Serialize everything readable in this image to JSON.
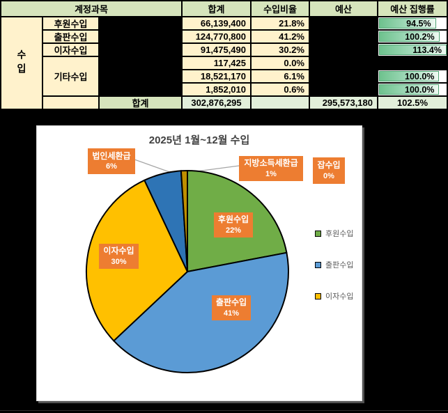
{
  "table": {
    "header": {
      "account": "계정과목",
      "total": "합계",
      "ratio": "수입비율",
      "budget": "예산",
      "execution": "예산 집행률"
    },
    "category": "수입",
    "rows": [
      {
        "label": "후원수입",
        "amount": "66,139,400",
        "ratio": "21.8%",
        "rate": "94.5%",
        "rate_val": 94.5
      },
      {
        "label": "출판수입",
        "amount": "124,770,800",
        "ratio": "41.2%",
        "rate": "100.2%",
        "rate_val": 100.2
      },
      {
        "label": "이자수입",
        "amount": "91,475,490",
        "ratio": "30.2%",
        "rate": "113.4%",
        "rate_val": 113.4
      },
      {
        "label": "기타수입",
        "amount": "117,425",
        "ratio": "0.0%",
        "rate": "",
        "rate_val": null
      },
      {
        "label": "",
        "amount": "18,521,170",
        "ratio": "6.1%",
        "rate": "100.0%",
        "rate_val": 100.0
      },
      {
        "label": "",
        "amount": "1,852,010",
        "ratio": "0.6%",
        "rate": "100.0%",
        "rate_val": 100.0
      }
    ],
    "total_row": {
      "label": "합계",
      "amount": "302,876,295",
      "budget": "295,573,180",
      "rate": "102.5%"
    }
  },
  "chart_data": {
    "type": "pie",
    "title": "2025년 1월~12월 수입",
    "start_angle": "12-oclock",
    "direction": "clockwise",
    "slices": [
      {
        "label": "후원수입",
        "value": 22,
        "pct_label": "22%",
        "color": "#70AD47",
        "label_style": "inside"
      },
      {
        "label": "출판수입",
        "value": 41,
        "pct_label": "41%",
        "color": "#5B9BD5",
        "label_style": "inside"
      },
      {
        "label": "이자수입",
        "value": 30,
        "pct_label": "30%",
        "color": "#FFC000",
        "label_style": "inside"
      },
      {
        "label": "법인세환급",
        "value": 6,
        "pct_label": "6%",
        "color": "#2E74B5",
        "label_style": "callout"
      },
      {
        "label": "지방소득세환급",
        "value": 1,
        "pct_label": "1%",
        "color": "#BF8F00",
        "label_style": "callout"
      },
      {
        "label": "잡수입",
        "value": 0,
        "pct_label": "0%",
        "color": "#ED7D31",
        "label_style": "callout"
      }
    ],
    "legend": [
      "후원수입",
      "출판수입",
      "이자수입"
    ],
    "legend_colors": [
      "#70AD47",
      "#5B9BD5",
      "#FFC000"
    ],
    "legend_position": "right",
    "label_box_color": "#ED7D31",
    "slice_outline_color": "#000000"
  },
  "colors": {
    "header_green": "#D6E4BC",
    "body_cream": "#FFF2CC",
    "total_light_green": "#E2EFDA",
    "databar_green": "#6EC28E",
    "canvas": "#000000"
  }
}
